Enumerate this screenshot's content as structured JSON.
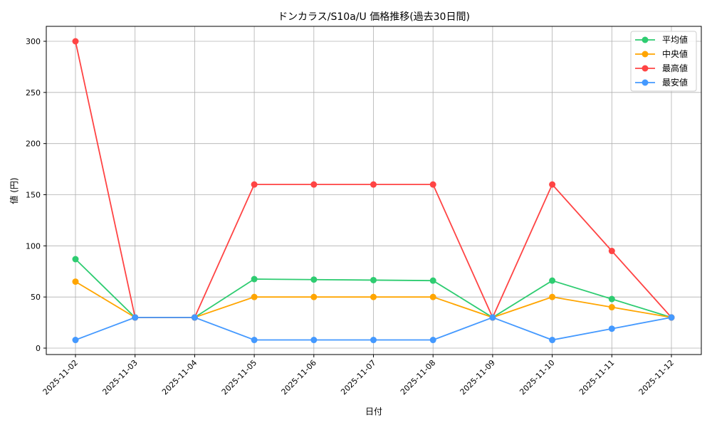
{
  "chart_data": {
    "type": "line",
    "title": "ドンカラス/S10a/U 価格推移(過去30日間)",
    "xlabel": "日付",
    "ylabel": "値 (円)",
    "ylim": [
      -7,
      315
    ],
    "yticks": [
      0,
      50,
      100,
      150,
      200,
      250,
      300
    ],
    "grid": true,
    "legend_position": "top-right",
    "categories": [
      "2025-11-02",
      "2025-11-03",
      "2025-11-04",
      "2025-11-05",
      "2025-11-06",
      "2025-11-07",
      "2025-11-08",
      "2025-11-09",
      "2025-11-10",
      "2025-11-11",
      "2025-11-12"
    ],
    "series": [
      {
        "name": "平均値",
        "color": "#2ecc71",
        "values": [
          87,
          30,
          30,
          67.5,
          67,
          66.5,
          66,
          30,
          66,
          48,
          30
        ]
      },
      {
        "name": "中央値",
        "color": "#ffa500",
        "values": [
          65,
          30,
          30,
          50,
          50,
          50,
          50,
          30,
          50,
          40,
          30
        ]
      },
      {
        "name": "最高値",
        "color": "#ff4444",
        "values": [
          300,
          30,
          30,
          160,
          160,
          160,
          160,
          30,
          160,
          95,
          30
        ]
      },
      {
        "name": "最安値",
        "color": "#4499ff",
        "values": [
          8,
          30,
          30,
          8,
          8,
          8,
          8,
          30,
          8,
          19,
          30
        ]
      }
    ]
  }
}
